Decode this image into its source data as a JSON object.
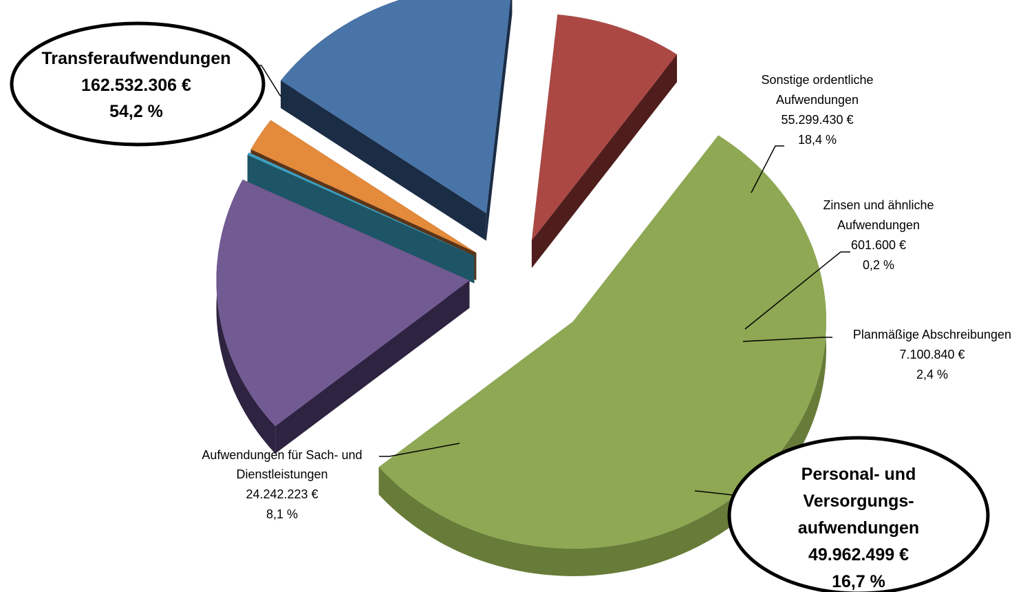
{
  "chart_data": {
    "type": "pie",
    "title": "",
    "exploded": true,
    "three_d": true,
    "unit": "€",
    "slices": [
      {
        "name": "Transferaufwendungen",
        "amount": "162.532.306 €",
        "percent": "54,2 %",
        "value": 54.2,
        "color": "#8ea853",
        "side": "#677c38",
        "emphasis": true
      },
      {
        "name": "Sonstige ordentliche Aufwendungen",
        "name_lines": [
          "Sonstige ordentliche",
          "Aufwendungen"
        ],
        "amount": "55.299.430 €",
        "percent": "18,4 %",
        "value": 18.4,
        "color": "#725a93",
        "side": "#2e2340",
        "emphasis": false
      },
      {
        "name": "Zinsen und ähnliche Aufwendungen",
        "name_lines": [
          "Zinsen und ähnliche",
          "Aufwendungen"
        ],
        "amount": "601.600 €",
        "percent": "0,2 %",
        "value": 0.2,
        "color": "#3f9fbf",
        "side": "#1d5566",
        "emphasis": false
      },
      {
        "name": "Planmäßige Abschreibungen",
        "amount": "7.100.840 €",
        "percent": "2,4 %",
        "value": 2.4,
        "color": "#e38a3b",
        "side": "#5a3519",
        "emphasis": false
      },
      {
        "name": "Personal- und Versorgungsaufwendungen",
        "name_lines": [
          "Personal- und",
          "Versorgungs-",
          "aufwendungen"
        ],
        "amount": "49.962.499 €",
        "percent": "16,7 %",
        "value": 16.7,
        "color": "#4874a8",
        "side": "#1b2c45",
        "emphasis": true
      },
      {
        "name": "Aufwendungen für Sach- und Dienstleistungen",
        "name_lines": [
          "Aufwendungen für Sach- und",
          "Dienstleistungen"
        ],
        "amount": "24.242.223 €",
        "percent": "8,1 %",
        "value": 8.1,
        "color": "#ab4844",
        "side": "#4e1d1c",
        "emphasis": false
      }
    ],
    "legend": "none"
  }
}
